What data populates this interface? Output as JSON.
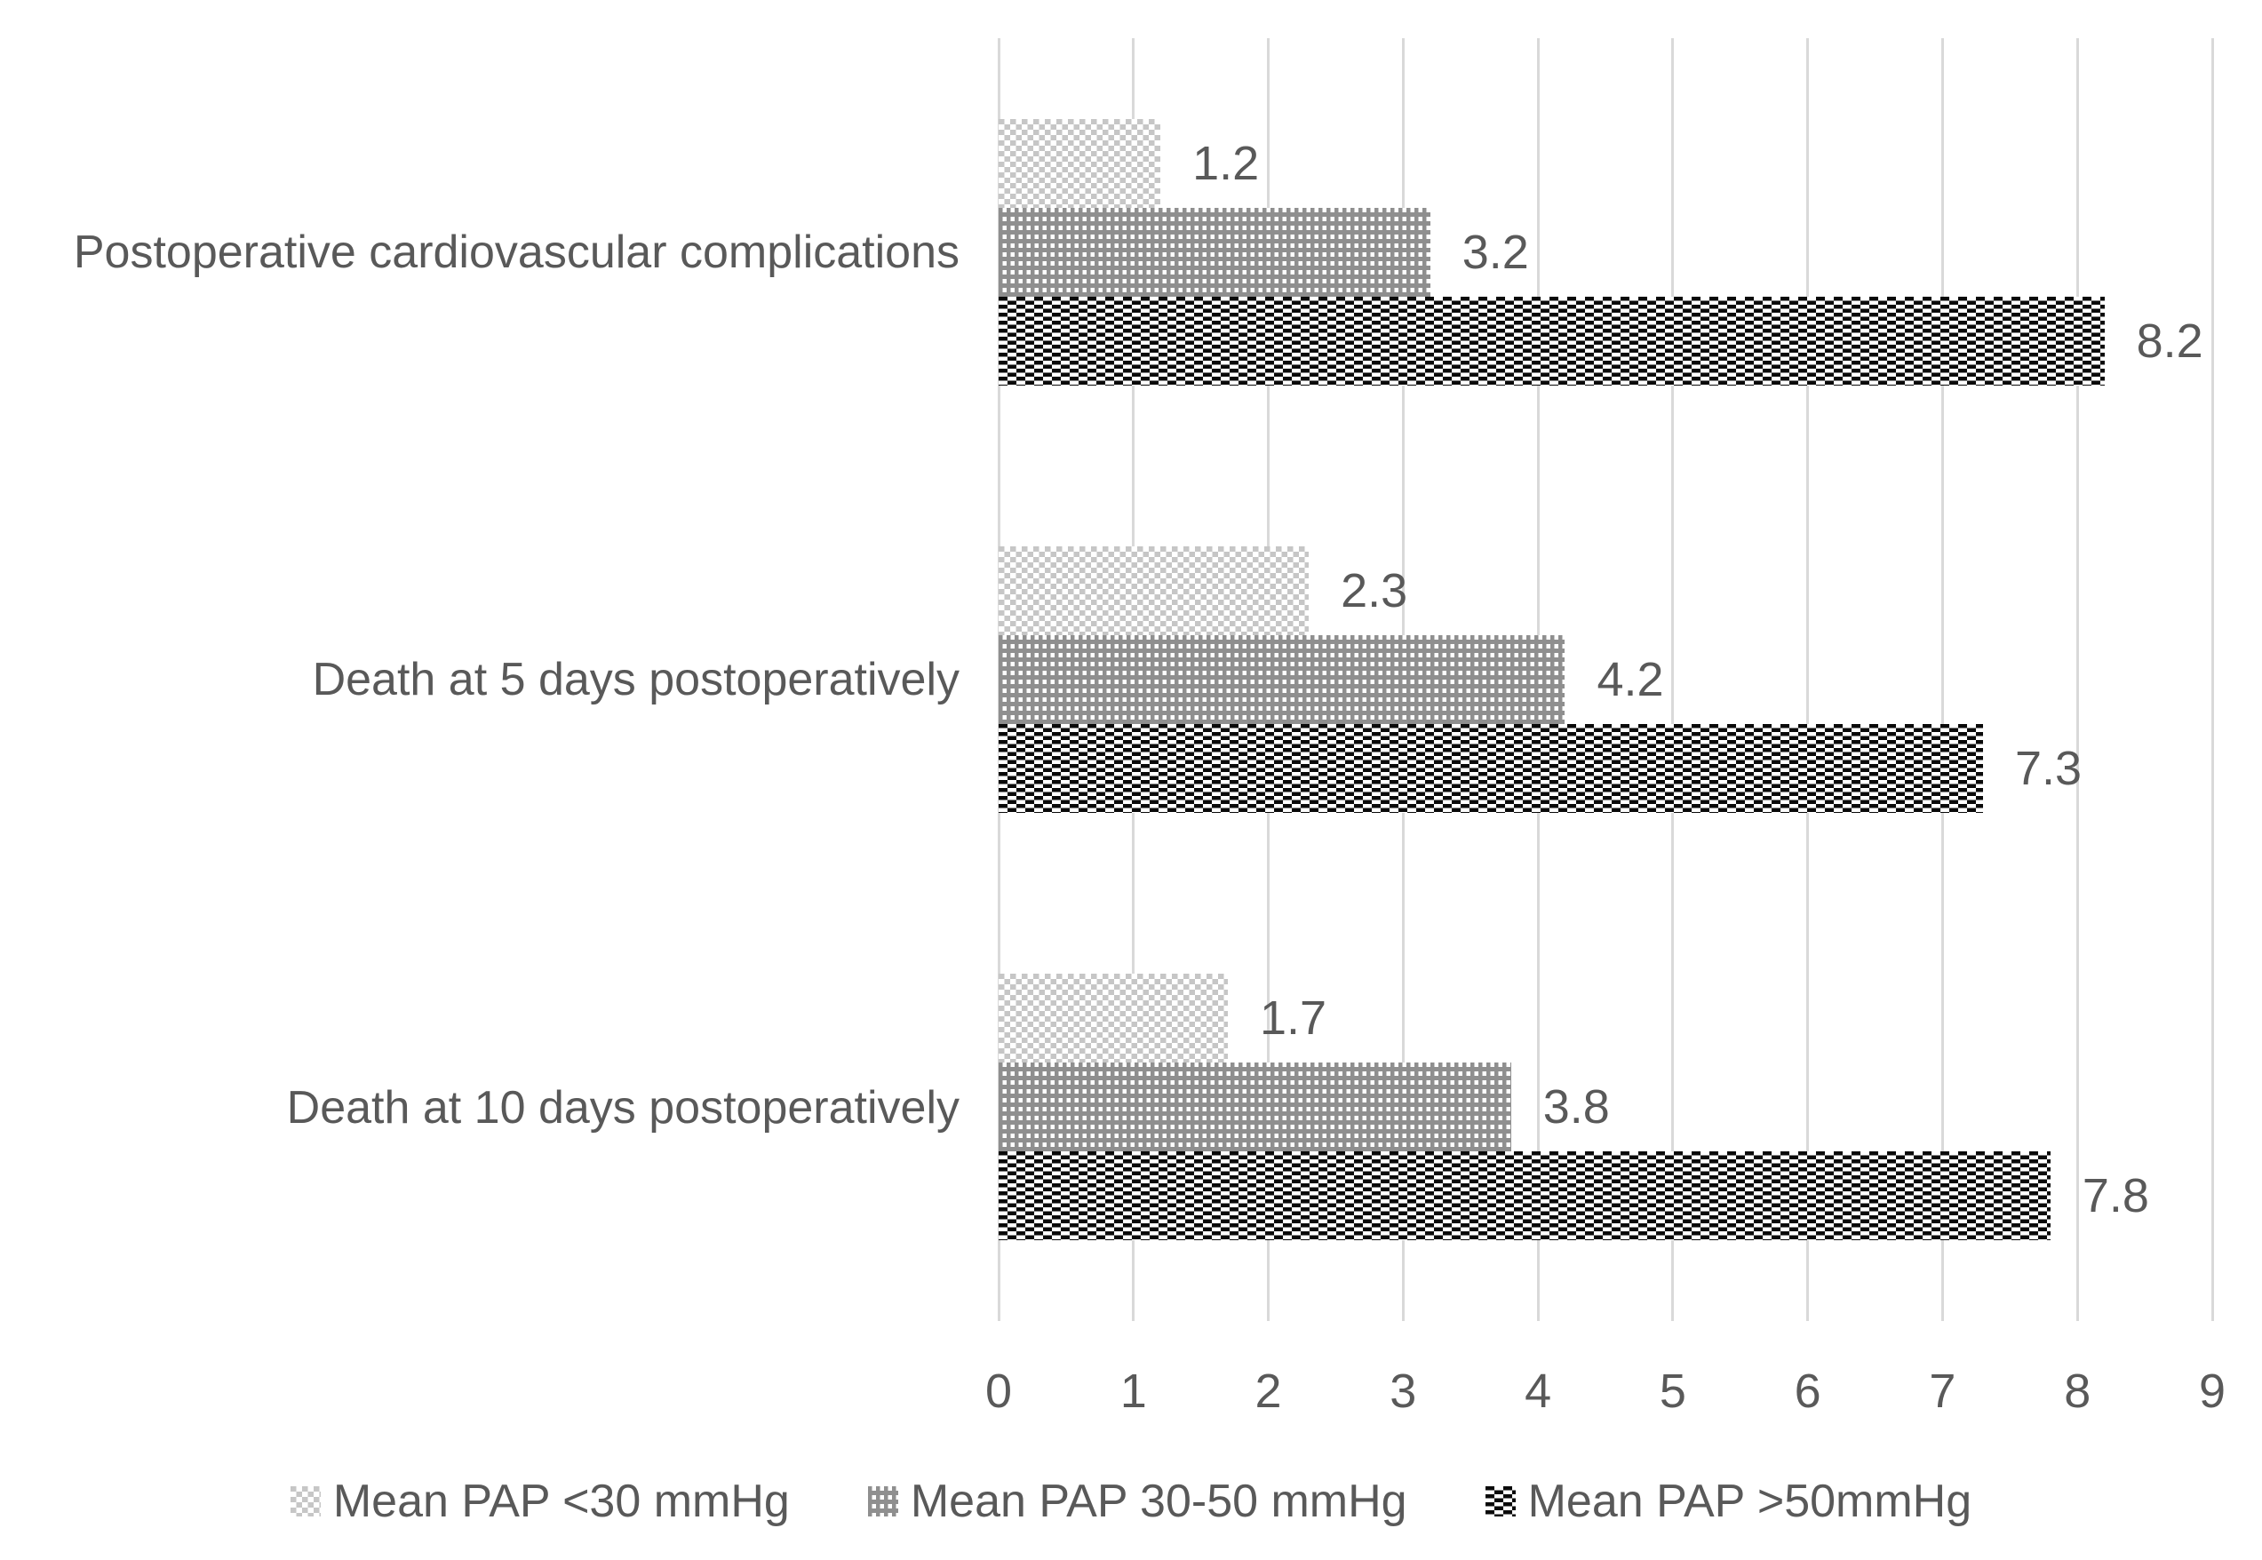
{
  "chart_data": {
    "type": "bar",
    "orientation": "horizontal",
    "title": "",
    "xlabel": "",
    "ylabel": "",
    "categories": [
      "Postoperative cardiovascular complications",
      "Death at 5 days postoperatively",
      "Death at 10 days postoperatively"
    ],
    "series": [
      {
        "name": "Mean PAP <30 mmHg",
        "values": [
          1.2,
          2.3,
          1.7
        ],
        "pattern": "small-white-squares-on-light-gray-checker",
        "color": "#c6c6c6"
      },
      {
        "name": "Mean PAP 30-50 mmHg",
        "values": [
          3.2,
          4.2,
          3.8
        ],
        "pattern": "white-squares-grid-on-gray",
        "color": "#8f8f8f"
      },
      {
        "name": "Mean PAP >50mmHg",
        "values": [
          8.2,
          7.3,
          7.8
        ],
        "pattern": "white-dashes-brick-on-black",
        "color": "#0a0a0a"
      }
    ],
    "data_labels": [
      [
        "1.2",
        "3.2",
        "8.2"
      ],
      [
        "2.3",
        "4.2",
        "7.3"
      ],
      [
        "1.7",
        "3.8",
        "7.8"
      ]
    ],
    "xlim": [
      0,
      9
    ],
    "x_ticks": [
      "0",
      "1",
      "2",
      "3",
      "4",
      "5",
      "6",
      "7",
      "8",
      "9"
    ],
    "grid": "vertical-gridlines-on",
    "legend_position": "bottom",
    "text_color": "#595959",
    "gridline_color": "#d9d9d9"
  }
}
